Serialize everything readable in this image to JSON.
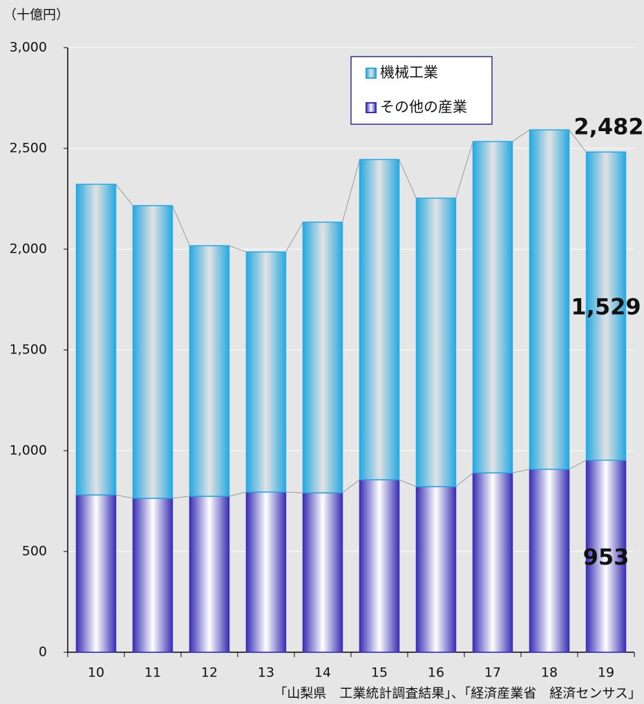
{
  "chart_data": {
    "type": "stacked_bar",
    "y_axis_label": "（十億円）",
    "source": "「山梨県　工業統計調査結果」、「経済産業省　経済センサス」",
    "categories": [
      "10",
      "11",
      "12",
      "13",
      "14",
      "15",
      "16",
      "17",
      "18",
      "19"
    ],
    "series": [
      {
        "name": "その他の産業",
        "color": "#3a30b4",
        "values": [
          781,
          764,
          774,
          795,
          791,
          856,
          822,
          890,
          908,
          953
        ],
        "value_labels": [
          null,
          null,
          null,
          null,
          null,
          null,
          null,
          null,
          null,
          "953"
        ]
      },
      {
        "name": "機械工業",
        "color": "#27a9e1",
        "values": [
          1541,
          1452,
          1243,
          1191,
          1343,
          1589,
          1431,
          1644,
          1684,
          1529
        ],
        "value_labels": [
          null,
          null,
          null,
          null,
          null,
          null,
          null,
          null,
          null,
          "1,529"
        ]
      }
    ],
    "annotations": [
      {
        "label": "2,482",
        "value": 2482,
        "index": 9
      }
    ],
    "ylim": [
      0,
      3000
    ],
    "yticks": [
      0,
      {
        "value": 500,
        "label": "500"
      },
      {
        "value": 1000,
        "label": "1,000"
      },
      {
        "value": 1500,
        "label": "1,500"
      },
      {
        "value": 2000,
        "label": "2,000"
      },
      {
        "value": 2500,
        "label": "2,500"
      },
      {
        "value": 3000,
        "label": "3,000"
      }
    ],
    "grid": true,
    "legend": "top-right"
  }
}
